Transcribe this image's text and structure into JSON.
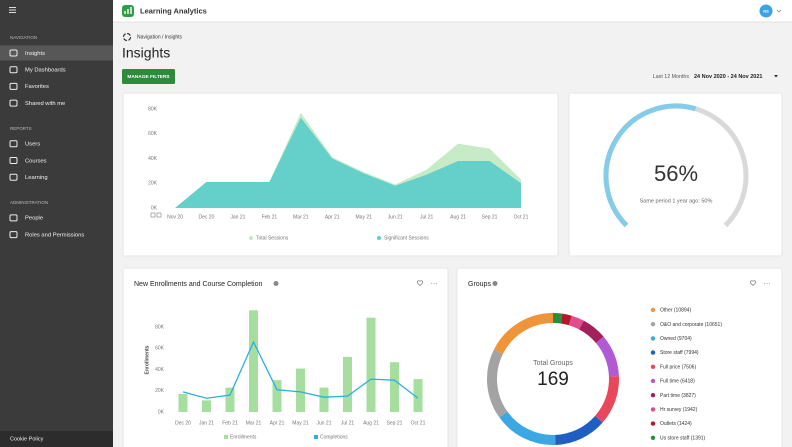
{
  "sidebar": {
    "sections": [
      {
        "title": "NAVIGATION",
        "items": [
          "Insights",
          "My Dashboards",
          "Favorites",
          "Shared with me"
        ]
      },
      {
        "title": "REPORTS",
        "items": [
          "Users",
          "Courses",
          "Learning"
        ]
      },
      {
        "title": "ADMINISTRATION",
        "items": [
          "People",
          "Roles and Permissions"
        ]
      }
    ],
    "footer": "Cookie Policy"
  },
  "header": {
    "app_name": "Learning Analytics",
    "avatar": "NS"
  },
  "page": {
    "breadcrumb": "Navigation / Insights",
    "title": "Insights",
    "filter_button": "MANAGE FILTERS",
    "period": "Last 12 Months",
    "date_range": "24 Nov 2020 - 24 Nov 2021"
  },
  "chart_data": [
    {
      "type": "area",
      "categories": [
        "Nov 20",
        "Dec 20",
        "Jan 21",
        "Feb 21",
        "Mar 21",
        "Apr 21",
        "May 21",
        "Jun 21",
        "Jul 21",
        "Aug 21",
        "Sep 21",
        "Oct 21"
      ],
      "series": [
        {
          "name": "Total Sessions",
          "color": "#c4eac4",
          "values": [
            0,
            21000,
            21000,
            21000,
            77000,
            41000,
            29000,
            19000,
            31000,
            52000,
            48000,
            23000
          ]
        },
        {
          "name": "Significant Sessions",
          "color": "#5fcfc9",
          "values": [
            0,
            21000,
            21000,
            21000,
            73000,
            40000,
            28000,
            18000,
            27000,
            38000,
            38000,
            20000
          ]
        }
      ],
      "ylim": [
        0,
        80000
      ],
      "yticks": [
        {
          "value": 0,
          "label": "0K"
        },
        {
          "value": 20000,
          "label": "20K"
        },
        {
          "value": 40000,
          "label": "40K"
        },
        {
          "value": 60000,
          "label": "60K"
        },
        {
          "value": 80000,
          "label": "80K"
        }
      ]
    },
    {
      "type": "gauge",
      "values": [
        56
      ],
      "value_labels": [
        "56%"
      ],
      "ylim": [
        0,
        100
      ],
      "subtitle": "Same period 1 year ago: 50%",
      "colors": [
        "#86cbe8",
        "#d9d9d9"
      ]
    },
    {
      "type": "bar_line",
      "title": "New Enrollments and Course Completion",
      "y_label": "Enrollments",
      "categories": [
        "Dec 20",
        "Jan 21",
        "Feb 21",
        "Mar 21",
        "Apr 21",
        "May 21",
        "Jun 21",
        "Jul 21",
        "Aug 21",
        "Sep 21",
        "Oct 21"
      ],
      "series": [
        {
          "name": "Enrollments",
          "type": "bar",
          "color": "#a6dea0",
          "values": [
            17000,
            11000,
            23000,
            96000,
            30000,
            41000,
            23000,
            52000,
            89000,
            47000,
            31000
          ]
        },
        {
          "name": "Completions",
          "type": "line",
          "color": "#2eaee0",
          "values": [
            19000,
            13000,
            16000,
            66000,
            21000,
            19000,
            14000,
            15000,
            31000,
            30000,
            13000
          ]
        }
      ],
      "ylim": [
        0,
        100000
      ],
      "yticks": [
        {
          "value": 0,
          "label": "0K"
        },
        {
          "value": 20000,
          "label": "20K"
        },
        {
          "value": 40000,
          "label": "40K"
        },
        {
          "value": 60000,
          "label": "60K"
        },
        {
          "value": 80000,
          "label": "80K"
        }
      ]
    },
    {
      "type": "donut",
      "title": "Groups",
      "categories": [
        "Other (10894)",
        "O&O and corporate (10651)",
        "Owned (9704)",
        "Store staff (7994)",
        "Full price (7506)",
        "Full time (6418)",
        "Part time (3827)",
        "Hr survey (1942)",
        "Outlets (1424)",
        "Us store staff (1391)"
      ],
      "values": [
        10894,
        10651,
        9704,
        7994,
        7506,
        6418,
        3827,
        1942,
        1424,
        1391
      ],
      "colors": [
        "#f0943a",
        "#a3a3a3",
        "#3ba7e3",
        "#1f5fc2",
        "#e8485a",
        "#b25ad4",
        "#a2205c",
        "#e24c8c",
        "#b21a2c",
        "#2a8c3c"
      ],
      "center_label": "Total Groups",
      "center_value": 169
    }
  ]
}
